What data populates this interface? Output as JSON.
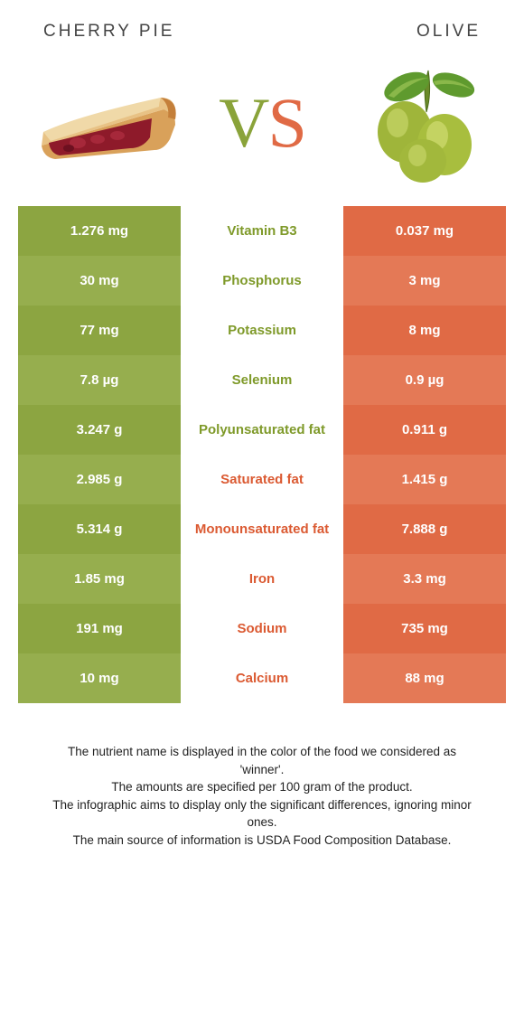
{
  "titles": {
    "left": "CHERRY PIE",
    "right": "OLIVE"
  },
  "vs": {
    "v": "V",
    "s": "S"
  },
  "colors": {
    "cherry_pie": "#8ca541",
    "cherry_pie_alt": "#96ae4e",
    "olive": "#e06a45",
    "olive_alt": "#e47956",
    "nutrient_green": "#7f9a2a",
    "nutrient_orange": "#db5a32"
  },
  "rows": [
    {
      "nutrient": "Vitamin B3",
      "winner": "cherry_pie",
      "left": "1.276 mg",
      "right": "0.037 mg"
    },
    {
      "nutrient": "Phosphorus",
      "winner": "cherry_pie",
      "left": "30 mg",
      "right": "3 mg"
    },
    {
      "nutrient": "Potassium",
      "winner": "cherry_pie",
      "left": "77 mg",
      "right": "8 mg"
    },
    {
      "nutrient": "Selenium",
      "winner": "cherry_pie",
      "left": "7.8 µg",
      "right": "0.9 µg"
    },
    {
      "nutrient": "Polyunsaturated fat",
      "winner": "cherry_pie",
      "left": "3.247 g",
      "right": "0.911 g"
    },
    {
      "nutrient": "Saturated fat",
      "winner": "olive",
      "left": "2.985 g",
      "right": "1.415 g"
    },
    {
      "nutrient": "Monounsaturated fat",
      "winner": "olive",
      "left": "5.314 g",
      "right": "7.888 g"
    },
    {
      "nutrient": "Iron",
      "winner": "olive",
      "left": "1.85 mg",
      "right": "3.3 mg"
    },
    {
      "nutrient": "Sodium",
      "winner": "olive",
      "left": "191 mg",
      "right": "735 mg"
    },
    {
      "nutrient": "Calcium",
      "winner": "olive",
      "left": "10 mg",
      "right": "88 mg"
    }
  ],
  "footer": [
    "The nutrient name is displayed in the color of the food we considered as 'winner'.",
    "The amounts are specified per 100 gram of the product.",
    "The infographic aims to display only the significant differences, ignoring minor ones.",
    "The main source of information is USDA Food Composition Database."
  ]
}
